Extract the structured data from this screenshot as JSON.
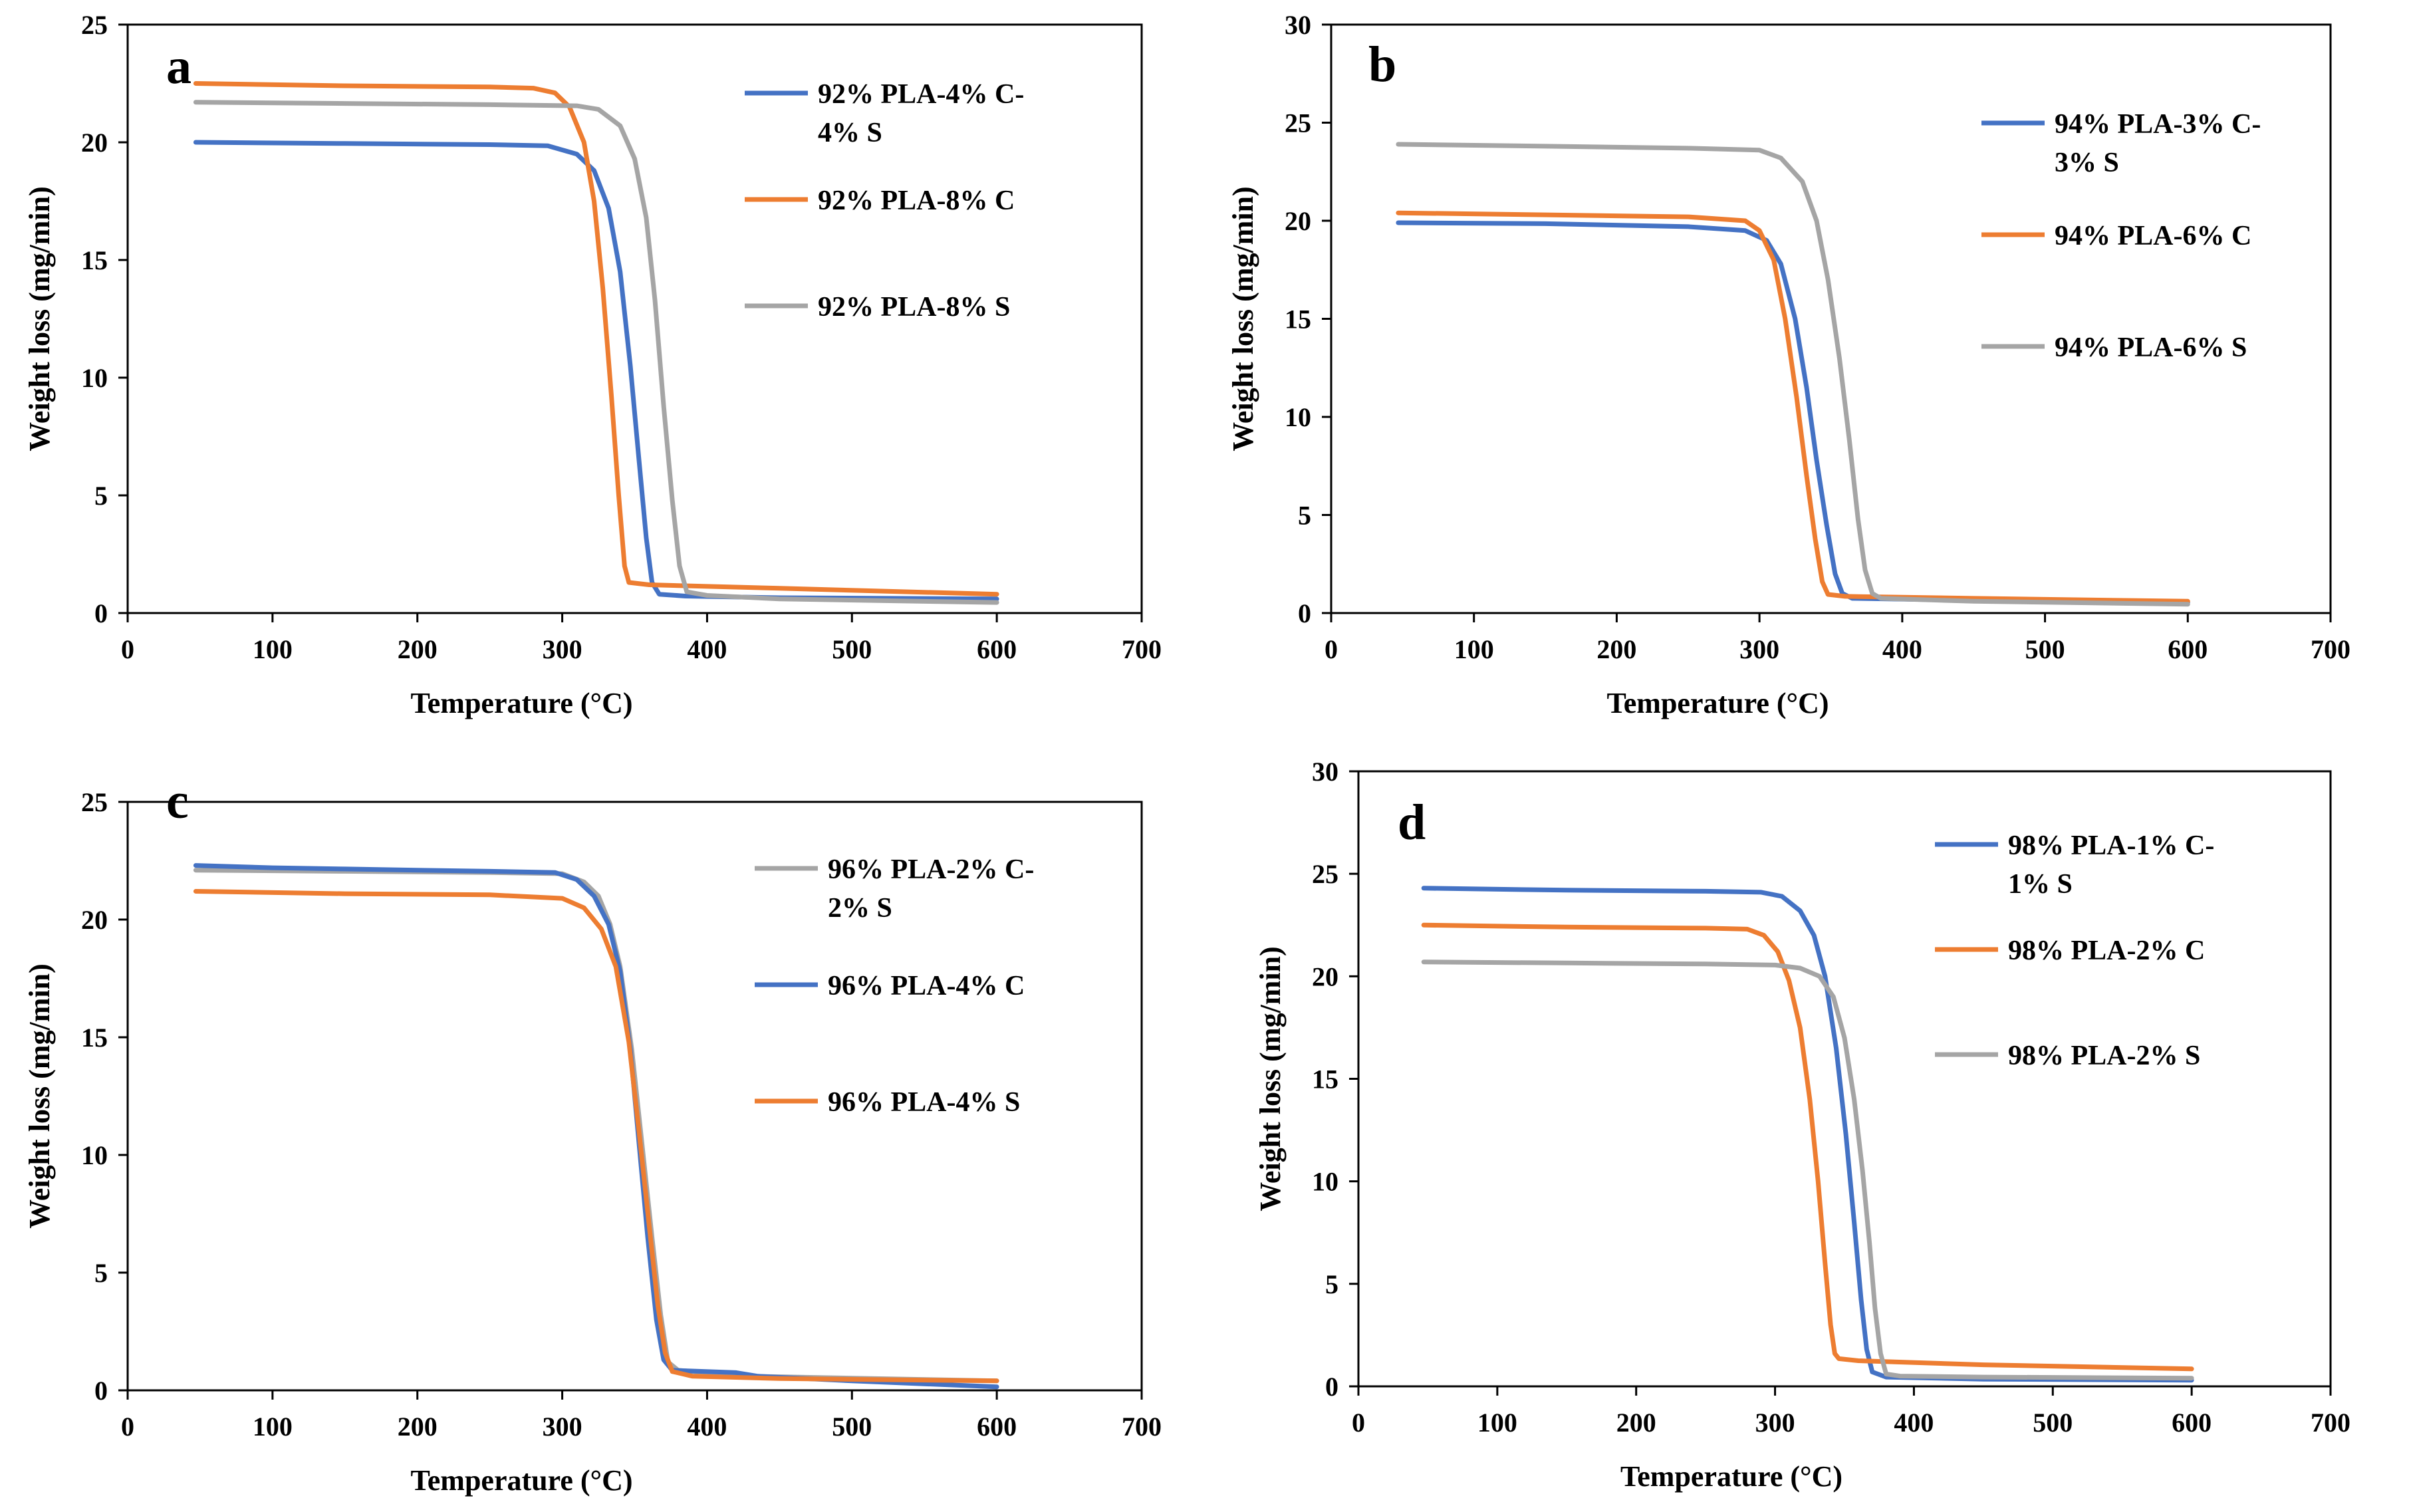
{
  "figure": {
    "panels": [
      "a",
      "b",
      "c",
      "d"
    ],
    "colors": {
      "blue": "#4472C4",
      "orange": "#ED7D31",
      "gray": "#A5A5A5"
    }
  },
  "chart_data": [
    {
      "type": "line",
      "panel_label": "a",
      "xlabel": "Temperature  (°C)",
      "ylabel": "Weight loss (mg/min)",
      "xlim": [
        0,
        700
      ],
      "ylim": [
        0,
        25
      ],
      "xticks": [
        "0",
        "100",
        "200",
        "300",
        "400",
        "500",
        "600",
        "700"
      ],
      "yticks": [
        "0",
        "5",
        "10",
        "15",
        "20",
        "25"
      ],
      "legend_position": "top-right",
      "series": [
        {
          "name": "92% PLA-4% C-4% S",
          "legend_lines": [
            "92% PLA-4% C-",
            "4% S"
          ],
          "color": "#4472C4",
          "points": [
            [
              47,
              20.0
            ],
            [
              150,
              19.95
            ],
            [
              250,
              19.9
            ],
            [
              290,
              19.85
            ],
            [
              310,
              19.5
            ],
            [
              322,
              18.8
            ],
            [
              332,
              17.2
            ],
            [
              340,
              14.5
            ],
            [
              347,
              10.5
            ],
            [
              353,
              6.5
            ],
            [
              358,
              3.2
            ],
            [
              362,
              1.3
            ],
            [
              367,
              0.8
            ],
            [
              385,
              0.72
            ],
            [
              450,
              0.65
            ],
            [
              600,
              0.6
            ]
          ]
        },
        {
          "name": "92% PLA-8% C",
          "legend_lines": [
            "92% PLA-8% C"
          ],
          "color": "#ED7D31",
          "points": [
            [
              47,
              22.5
            ],
            [
              150,
              22.4
            ],
            [
              250,
              22.35
            ],
            [
              280,
              22.3
            ],
            [
              295,
              22.1
            ],
            [
              305,
              21.5
            ],
            [
              315,
              20.0
            ],
            [
              322,
              17.5
            ],
            [
              328,
              13.8
            ],
            [
              334,
              9.2
            ],
            [
              339,
              5.0
            ],
            [
              343,
              2.0
            ],
            [
              346,
              1.3
            ],
            [
              360,
              1.2
            ],
            [
              450,
              1.05
            ],
            [
              600,
              0.8
            ]
          ]
        },
        {
          "name": "92% PLA-8% S",
          "legend_lines": [
            "92% PLA-8% S"
          ],
          "color": "#A5A5A5",
          "points": [
            [
              47,
              21.7
            ],
            [
              150,
              21.65
            ],
            [
              250,
              21.6
            ],
            [
              310,
              21.55
            ],
            [
              325,
              21.4
            ],
            [
              340,
              20.7
            ],
            [
              350,
              19.3
            ],
            [
              358,
              16.8
            ],
            [
              364,
              13.3
            ],
            [
              370,
              8.8
            ],
            [
              376,
              4.8
            ],
            [
              381,
              2.0
            ],
            [
              386,
              0.9
            ],
            [
              400,
              0.75
            ],
            [
              450,
              0.6
            ],
            [
              600,
              0.45
            ]
          ]
        }
      ]
    },
    {
      "type": "line",
      "panel_label": "b",
      "xlabel": "Temperature  (°C)",
      "ylabel": "Weight loss (mg/min)",
      "xlim": [
        0,
        700
      ],
      "ylim": [
        0,
        30
      ],
      "xticks": [
        "0",
        "100",
        "200",
        "300",
        "400",
        "500",
        "600",
        "700"
      ],
      "yticks": [
        "0",
        "5",
        "10",
        "15",
        "20",
        "25",
        "30"
      ],
      "legend_position": "top-right",
      "series": [
        {
          "name": "94% PLA-3% C-3% S",
          "legend_lines": [
            "94% PLA-3% C-",
            "3% S"
          ],
          "color": "#4472C4",
          "points": [
            [
              47,
              19.9
            ],
            [
              150,
              19.85
            ],
            [
              250,
              19.7
            ],
            [
              290,
              19.5
            ],
            [
              305,
              19.0
            ],
            [
              315,
              17.8
            ],
            [
              325,
              15.0
            ],
            [
              333,
              11.5
            ],
            [
              340,
              7.8
            ],
            [
              347,
              4.5
            ],
            [
              353,
              2.0
            ],
            [
              358,
              1.0
            ],
            [
              365,
              0.75
            ],
            [
              450,
              0.65
            ],
            [
              600,
              0.55
            ]
          ]
        },
        {
          "name": "94% PLA-6% C",
          "legend_lines": [
            "94% PLA-6% C"
          ],
          "color": "#ED7D31",
          "points": [
            [
              47,
              20.4
            ],
            [
              150,
              20.3
            ],
            [
              250,
              20.2
            ],
            [
              290,
              20.0
            ],
            [
              300,
              19.5
            ],
            [
              310,
              18.0
            ],
            [
              318,
              15.0
            ],
            [
              326,
              11.0
            ],
            [
              333,
              7.0
            ],
            [
              339,
              3.8
            ],
            [
              344,
              1.6
            ],
            [
              348,
              0.95
            ],
            [
              360,
              0.85
            ],
            [
              450,
              0.75
            ],
            [
              600,
              0.6
            ]
          ]
        },
        {
          "name": "94% PLA-6% S",
          "legend_lines": [
            "94% PLA-6% S"
          ],
          "color": "#A5A5A5",
          "points": [
            [
              47,
              23.9
            ],
            [
              150,
              23.8
            ],
            [
              250,
              23.7
            ],
            [
              300,
              23.6
            ],
            [
              315,
              23.2
            ],
            [
              330,
              22.0
            ],
            [
              340,
              20.0
            ],
            [
              348,
              17.0
            ],
            [
              356,
              13.0
            ],
            [
              363,
              8.8
            ],
            [
              369,
              4.8
            ],
            [
              374,
              2.2
            ],
            [
              379,
              1.0
            ],
            [
              385,
              0.75
            ],
            [
              450,
              0.6
            ],
            [
              600,
              0.45
            ]
          ]
        }
      ]
    },
    {
      "type": "line",
      "panel_label": "c",
      "xlabel": "Temperature  (°C)",
      "ylabel": "Weight loss (mg/min)",
      "xlim": [
        0,
        700
      ],
      "ylim": [
        0,
        25
      ],
      "xticks": [
        "0",
        "100",
        "200",
        "300",
        "400",
        "500",
        "600",
        "700"
      ],
      "yticks": [
        "0",
        "5",
        "10",
        "15",
        "20",
        "25"
      ],
      "legend_position": "top-right",
      "series": [
        {
          "name": "96% PLA-2% C-2% S",
          "legend_lines": [
            "96% PLA-2% C-",
            "2% S"
          ],
          "color": "#A5A5A5",
          "points": [
            [
              47,
              22.1
            ],
            [
              150,
              22.05
            ],
            [
              250,
              22.0
            ],
            [
              300,
              21.95
            ],
            [
              315,
              21.6
            ],
            [
              325,
              21.0
            ],
            [
              333,
              19.8
            ],
            [
              340,
              18.0
            ],
            [
              348,
              14.5
            ],
            [
              355,
              10.5
            ],
            [
              362,
              6.5
            ],
            [
              368,
              3.2
            ],
            [
              373,
              1.2
            ],
            [
              380,
              0.85
            ],
            [
              430,
              0.6
            ],
            [
              600,
              0.4
            ]
          ]
        },
        {
          "name": "96% PLA-4% C",
          "legend_lines": [
            "96% PLA-4% C"
          ],
          "color": "#4472C4",
          "points": [
            [
              47,
              22.3
            ],
            [
              100,
              22.2
            ],
            [
              150,
              22.15
            ],
            [
              200,
              22.1
            ],
            [
              250,
              22.05
            ],
            [
              295,
              22.0
            ],
            [
              310,
              21.7
            ],
            [
              322,
              21.0
            ],
            [
              332,
              19.8
            ],
            [
              340,
              17.8
            ],
            [
              347,
              14.5
            ],
            [
              353,
              10.5
            ],
            [
              359,
              6.5
            ],
            [
              365,
              3.0
            ],
            [
              370,
              1.3
            ],
            [
              376,
              0.85
            ],
            [
              420,
              0.75
            ],
            [
              435,
              0.6
            ],
            [
              500,
              0.4
            ],
            [
              600,
              0.15
            ]
          ]
        },
        {
          "name": "96% PLA-4% S",
          "legend_lines": [
            "96% PLA-4% S"
          ],
          "color": "#ED7D31",
          "points": [
            [
              47,
              21.2
            ],
            [
              150,
              21.1
            ],
            [
              250,
              21.05
            ],
            [
              300,
              20.9
            ],
            [
              315,
              20.5
            ],
            [
              327,
              19.6
            ],
            [
              337,
              18.0
            ],
            [
              346,
              14.8
            ],
            [
              353,
              11.0
            ],
            [
              360,
              7.0
            ],
            [
              366,
              3.6
            ],
            [
              371,
              1.6
            ],
            [
              376,
              0.8
            ],
            [
              390,
              0.6
            ],
            [
              450,
              0.5
            ],
            [
              600,
              0.4
            ]
          ]
        }
      ]
    },
    {
      "type": "line",
      "panel_label": "d",
      "xlabel": "Temperature  (°C)",
      "ylabel": "Weight loss (mg/min)",
      "xlim": [
        0,
        700
      ],
      "ylim": [
        0,
        30
      ],
      "xticks": [
        "0",
        "100",
        "200",
        "300",
        "400",
        "500",
        "600",
        "700"
      ],
      "yticks": [
        "0",
        "5",
        "10",
        "15",
        "20",
        "25",
        "30"
      ],
      "legend_position": "top-right",
      "series": [
        {
          "name": "98% PLA-1% C-1% S",
          "legend_lines": [
            "98% PLA-1% C-",
            "1% S"
          ],
          "color": "#4472C4",
          "points": [
            [
              47,
              24.3
            ],
            [
              150,
              24.2
            ],
            [
              250,
              24.15
            ],
            [
              290,
              24.1
            ],
            [
              305,
              23.9
            ],
            [
              318,
              23.2
            ],
            [
              328,
              22.0
            ],
            [
              336,
              20.0
            ],
            [
              344,
              16.5
            ],
            [
              351,
              12.3
            ],
            [
              357,
              8.0
            ],
            [
              362,
              4.2
            ],
            [
              366,
              1.8
            ],
            [
              370,
              0.7
            ],
            [
              380,
              0.45
            ],
            [
              450,
              0.35
            ],
            [
              600,
              0.3
            ]
          ]
        },
        {
          "name": "98% PLA-2% C",
          "legend_lines": [
            "98% PLA-2% C"
          ],
          "color": "#ED7D31",
          "points": [
            [
              47,
              22.5
            ],
            [
              150,
              22.4
            ],
            [
              250,
              22.35
            ],
            [
              280,
              22.3
            ],
            [
              292,
              22.0
            ],
            [
              302,
              21.2
            ],
            [
              310,
              19.8
            ],
            [
              318,
              17.5
            ],
            [
              325,
              14.0
            ],
            [
              331,
              10.0
            ],
            [
              336,
              6.0
            ],
            [
              340,
              3.0
            ],
            [
              343,
              1.6
            ],
            [
              346,
              1.35
            ],
            [
              360,
              1.25
            ],
            [
              450,
              1.05
            ],
            [
              600,
              0.85
            ]
          ]
        },
        {
          "name": "98% PLA-2% S",
          "legend_lines": [
            "98% PLA-2% S"
          ],
          "color": "#A5A5A5",
          "points": [
            [
              47,
              20.7
            ],
            [
              150,
              20.65
            ],
            [
              250,
              20.6
            ],
            [
              300,
              20.55
            ],
            [
              318,
              20.4
            ],
            [
              332,
              20.0
            ],
            [
              342,
              19.0
            ],
            [
              350,
              17.0
            ],
            [
              357,
              14.0
            ],
            [
              363,
              10.5
            ],
            [
              368,
              7.0
            ],
            [
              372,
              3.8
            ],
            [
              376,
              1.6
            ],
            [
              380,
              0.6
            ],
            [
              390,
              0.5
            ],
            [
              450,
              0.45
            ],
            [
              600,
              0.4
            ]
          ]
        }
      ]
    }
  ]
}
